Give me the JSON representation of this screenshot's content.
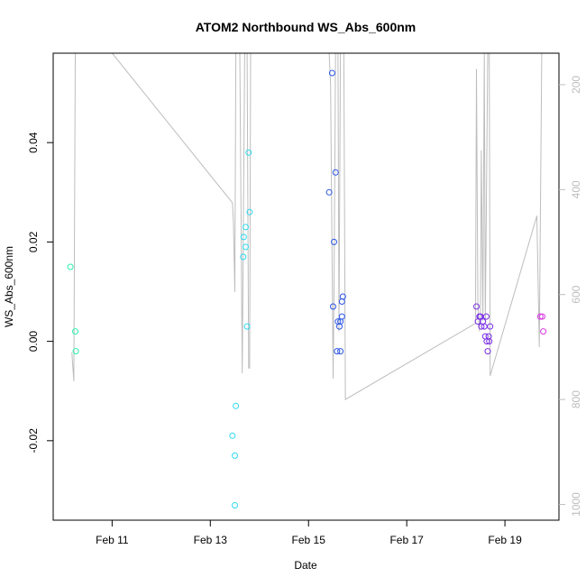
{
  "chart_data": {
    "type": "scatter",
    "title": "ATOM2 Northbound WS_Abs_600nm",
    "xlabel": "Date",
    "ylabel": "WS_Abs_600nm",
    "x_unit": "days since Feb 10 00:00",
    "xlim": [
      -0.2,
      10.1
    ],
    "ylim": [
      -0.036,
      0.058
    ],
    "y_ticks": [
      {
        "value": -0.02,
        "label": "-0.02"
      },
      {
        "value": 0.0,
        "label": "0.00"
      },
      {
        "value": 0.02,
        "label": "0.02"
      },
      {
        "value": 0.04,
        "label": "0.04"
      }
    ],
    "x_ticks": [
      {
        "value": 1,
        "label": "Feb 11"
      },
      {
        "value": 3,
        "label": "Feb 13"
      },
      {
        "value": 5,
        "label": "Feb 15"
      },
      {
        "value": 7,
        "label": "Feb 17"
      },
      {
        "value": 9,
        "label": "Feb 19"
      }
    ],
    "right_axis": {
      "color": "#bdbdbd",
      "lim": [
        1030,
        140
      ],
      "ticks": [
        {
          "value": 200,
          "label": "200"
        },
        {
          "value": 400,
          "label": "400"
        },
        {
          "value": 600,
          "label": "600"
        },
        {
          "value": 800,
          "label": "800"
        },
        {
          "value": 1000,
          "label": "1000"
        }
      ]
    },
    "points": [
      {
        "x": 0.15,
        "y": 0.015,
        "color": "#2cf0b0"
      },
      {
        "x": 0.25,
        "y": 0.002,
        "color": "#2cf0b0"
      },
      {
        "x": 0.26,
        "y": -0.002,
        "color": "#2cf0b0"
      },
      {
        "x": 3.45,
        "y": -0.019,
        "color": "#2cd8ee"
      },
      {
        "x": 3.5,
        "y": -0.023,
        "color": "#2cd8ee"
      },
      {
        "x": 3.52,
        "y": -0.013,
        "color": "#2cd8ee"
      },
      {
        "x": 3.5,
        "y": -0.033,
        "color": "#2cd8ee"
      },
      {
        "x": 3.67,
        "y": 0.017,
        "color": "#2cd8ee"
      },
      {
        "x": 3.68,
        "y": 0.021,
        "color": "#2cd8ee"
      },
      {
        "x": 3.72,
        "y": 0.019,
        "color": "#2cd8ee"
      },
      {
        "x": 3.72,
        "y": 0.023,
        "color": "#2cd8ee"
      },
      {
        "x": 3.75,
        "y": 0.003,
        "color": "#2cd8ee"
      },
      {
        "x": 3.78,
        "y": 0.038,
        "color": "#2cd8ee"
      },
      {
        "x": 3.8,
        "y": 0.026,
        "color": "#2cd8ee"
      },
      {
        "x": 5.42,
        "y": 0.03,
        "color": "#2a55e6"
      },
      {
        "x": 5.48,
        "y": 0.054,
        "color": "#2a55e6"
      },
      {
        "x": 5.5,
        "y": 0.007,
        "color": "#2a55e6"
      },
      {
        "x": 5.52,
        "y": 0.02,
        "color": "#2a55e6"
      },
      {
        "x": 5.55,
        "y": 0.034,
        "color": "#2a55e6"
      },
      {
        "x": 5.58,
        "y": -0.002,
        "color": "#2a55e6"
      },
      {
        "x": 5.6,
        "y": 0.004,
        "color": "#2a55e6"
      },
      {
        "x": 5.63,
        "y": 0.003,
        "color": "#2a55e6"
      },
      {
        "x": 5.65,
        "y": 0.004,
        "color": "#2a55e6"
      },
      {
        "x": 5.65,
        "y": -0.002,
        "color": "#2a55e6"
      },
      {
        "x": 5.68,
        "y": 0.005,
        "color": "#2a55e6"
      },
      {
        "x": 5.68,
        "y": 0.008,
        "color": "#2a55e6"
      },
      {
        "x": 5.7,
        "y": 0.009,
        "color": "#2a55e6"
      },
      {
        "x": 8.42,
        "y": 0.007,
        "color": "#7a2ee6"
      },
      {
        "x": 8.45,
        "y": 0.004,
        "color": "#7a2ee6"
      },
      {
        "x": 8.48,
        "y": 0.005,
        "color": "#7a2ee6"
      },
      {
        "x": 8.5,
        "y": 0.005,
        "color": "#7a2ee6"
      },
      {
        "x": 8.52,
        "y": 0.003,
        "color": "#7a2ee6"
      },
      {
        "x": 8.55,
        "y": 0.004,
        "color": "#7a2ee6"
      },
      {
        "x": 8.58,
        "y": 0.003,
        "color": "#7a2ee6"
      },
      {
        "x": 8.6,
        "y": 0.001,
        "color": "#7a2ee6"
      },
      {
        "x": 8.62,
        "y": 0.005,
        "color": "#7a2ee6"
      },
      {
        "x": 8.63,
        "y": 0.0,
        "color": "#7a2ee6"
      },
      {
        "x": 8.65,
        "y": -0.002,
        "color": "#7a2ee6"
      },
      {
        "x": 8.67,
        "y": 0.001,
        "color": "#7a2ee6"
      },
      {
        "x": 8.68,
        "y": 0.0,
        "color": "#7a2ee6"
      },
      {
        "x": 8.7,
        "y": 0.003,
        "color": "#7a2ee6"
      },
      {
        "x": 9.72,
        "y": 0.005,
        "color": "#d83ae0"
      },
      {
        "x": 9.76,
        "y": 0.005,
        "color": "#d83ae0"
      },
      {
        "x": 9.78,
        "y": 0.002,
        "color": "#d83ae0"
      }
    ],
    "secondary_line": {
      "color": "#bdbdbd",
      "x": [
        0.18,
        0.22,
        0.25,
        0.3,
        0.32,
        0.34,
        1.0,
        3.45,
        3.47,
        3.5,
        3.52,
        3.55,
        3.6,
        3.65,
        3.7,
        3.72,
        3.75,
        3.78,
        3.8,
        3.82,
        3.85,
        3.88,
        3.9,
        5.4,
        5.42,
        5.45,
        5.5,
        5.52,
        5.55,
        5.6,
        5.62,
        5.65,
        5.7,
        5.72,
        5.75,
        8.4,
        8.42,
        8.45,
        8.48,
        8.5,
        8.52,
        8.55,
        8.58,
        8.6,
        8.62,
        8.65,
        8.68,
        8.7,
        9.65,
        9.7,
        9.75,
        9.8
      ],
      "y": [
        710,
        765,
        140,
        140,
        140,
        140,
        140,
        425,
        460,
        595,
        140,
        140,
        140,
        750,
        140,
        140,
        140,
        740,
        740,
        140,
        140,
        140,
        140,
        140,
        140,
        200,
        760,
        590,
        140,
        140,
        670,
        140,
        140,
        140,
        800,
        655,
        170,
        625,
        670,
        635,
        325,
        650,
        140,
        650,
        450,
        140,
        140,
        755,
        450,
        700,
        140,
        140
      ]
    }
  }
}
